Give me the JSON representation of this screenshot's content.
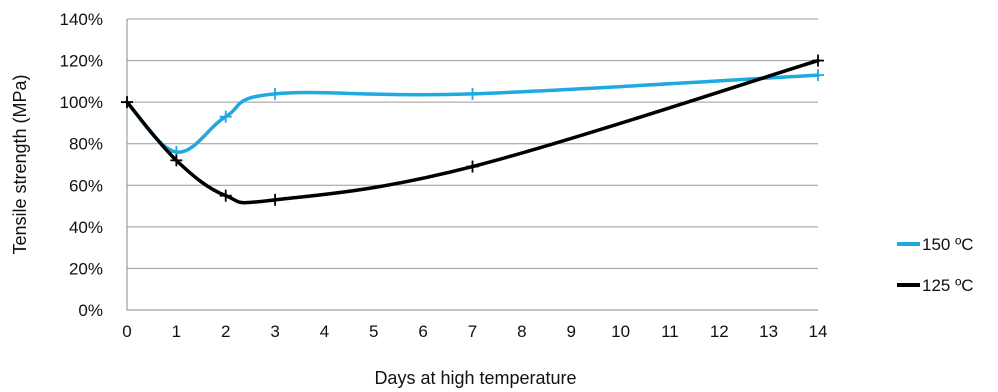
{
  "chart_data": {
    "type": "line",
    "xlabel": "Days at high temperature",
    "ylabel": "Tensile strength (MPa)",
    "x_ticks": [
      "0",
      "1",
      "2",
      "3",
      "4",
      "5",
      "6",
      "7",
      "8",
      "9",
      "10",
      "11",
      "12",
      "13",
      "14"
    ],
    "y_ticks": [
      "0%",
      "20%",
      "40%",
      "60%",
      "80%",
      "100%",
      "120%",
      "140%"
    ],
    "xlim": [
      0,
      14
    ],
    "ylim": [
      0,
      140
    ],
    "grid": "horizontal",
    "legend_position": "right",
    "series": [
      {
        "name": "150 ºC",
        "color": "#1ea9e1",
        "x": [
          0,
          1,
          2,
          3,
          7,
          14
        ],
        "y": [
          100,
          76,
          93,
          104,
          104,
          113
        ]
      },
      {
        "name": "125 ºC",
        "color": "#000000",
        "x": [
          0,
          1,
          2,
          3,
          7,
          14
        ],
        "y": [
          100,
          72,
          55,
          53,
          69,
          120
        ]
      }
    ]
  }
}
